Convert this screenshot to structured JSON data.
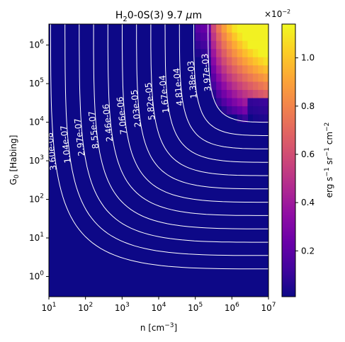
{
  "chart_data": {
    "type": "heatmap",
    "title": "H$_2$0-0S(3) 9.7 $\\mu$m",
    "title_parts": {
      "pre": "H",
      "sub": "2",
      "post": "0-0S(3) 9.7 ",
      "mu": "μ",
      "unit": "m"
    },
    "xlabel": {
      "pre": "n [cm",
      "sup": "−3",
      "post": "]"
    },
    "ylabel": {
      "pre": "G",
      "sub": "0",
      "post": " [Habing]"
    },
    "x_scale": "log",
    "y_scale": "log",
    "xlim": [
      10,
      10000000
    ],
    "ylim": [
      0.3,
      3500000
    ],
    "x_ticks": [
      {
        "base": "10",
        "exp": "1",
        "value": 10
      },
      {
        "base": "10",
        "exp": "2",
        "value": 100
      },
      {
        "base": "10",
        "exp": "3",
        "value": 1000
      },
      {
        "base": "10",
        "exp": "4",
        "value": 10000
      },
      {
        "base": "10",
        "exp": "5",
        "value": 100000
      },
      {
        "base": "10",
        "exp": "6",
        "value": 1000000
      },
      {
        "base": "10",
        "exp": "7",
        "value": 10000000
      }
    ],
    "y_ticks": [
      {
        "base": "10",
        "exp": "0",
        "value": 1
      },
      {
        "base": "10",
        "exp": "1",
        "value": 10
      },
      {
        "base": "10",
        "exp": "2",
        "value": 100
      },
      {
        "base": "10",
        "exp": "3",
        "value": 1000
      },
      {
        "base": "10",
        "exp": "4",
        "value": 10000
      },
      {
        "base": "10",
        "exp": "5",
        "value": 100000
      },
      {
        "base": "10",
        "exp": "6",
        "value": 1000000
      }
    ],
    "colorbar": {
      "colormap": "plasma",
      "label": {
        "pre": "erg s",
        "e1": "−1",
        "mid1": " sr",
        "e2": "−1",
        "mid2": " cm",
        "e3": "−2"
      },
      "multiplier": {
        "base": "×10",
        "exp": "−2"
      },
      "range": [
        0.0001,
        0.0114
      ],
      "ticks": [
        {
          "label": "0.2",
          "value": 0.002
        },
        {
          "label": "0.4",
          "value": 0.004
        },
        {
          "label": "0.6",
          "value": 0.006
        },
        {
          "label": "0.8",
          "value": 0.008
        },
        {
          "label": "1.0",
          "value": 0.01
        }
      ]
    },
    "contour_levels": [
      {
        "label": "3.60e-08",
        "value": 3.6e-08
      },
      {
        "label": "1.04e-07",
        "value": 1.04e-07
      },
      {
        "label": "2.97e-07",
        "value": 2.97e-07
      },
      {
        "label": "8.55e-07",
        "value": 8.55e-07
      },
      {
        "label": "2.46e-06",
        "value": 2.46e-06
      },
      {
        "label": "7.06e-06",
        "value": 7.06e-06
      },
      {
        "label": "2.03e-05",
        "value": 2.03e-05
      },
      {
        "label": "5.82e-05",
        "value": 5.82e-05
      },
      {
        "label": "1.67e-04",
        "value": 0.000167
      },
      {
        "label": "4.81e-04",
        "value": 0.000481
      },
      {
        "label": "1.38e-03",
        "value": 0.00138
      },
      {
        "label": "3.97e-03",
        "value": 0.00397
      }
    ],
    "bright_region": {
      "n_min": 100000,
      "n_max": 10000000,
      "G0_min": 10000,
      "G0_max": 3500000,
      "peak_value": 0.0112
    },
    "grid": false
  }
}
